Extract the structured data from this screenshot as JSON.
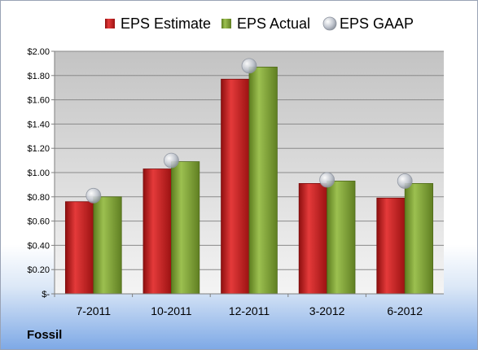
{
  "company": "Fossil",
  "chart_data": {
    "type": "bar",
    "categories": [
      "7-2011",
      "10-2011",
      "12-2011",
      "3-2012",
      "6-2012"
    ],
    "series": [
      {
        "name": "EPS Estimate",
        "kind": "bar",
        "color": "#cc1f1f",
        "values": [
          0.76,
          1.03,
          1.77,
          0.91,
          0.79
        ]
      },
      {
        "name": "EPS Actual",
        "kind": "bar",
        "color": "#7fa234",
        "values": [
          0.8,
          1.09,
          1.87,
          0.93,
          0.91
        ]
      },
      {
        "name": "EPS GAAP",
        "kind": "marker",
        "color": "#b8bec8",
        "values": [
          0.81,
          1.1,
          1.88,
          0.94,
          0.93
        ]
      }
    ],
    "yticks": [
      "$-",
      "$0.20",
      "$0.40",
      "$0.60",
      "$0.80",
      "$1.00",
      "$1.20",
      "$1.40",
      "$1.60",
      "$1.80",
      "$2.00"
    ],
    "ylim": [
      0,
      2.0
    ],
    "grid": true,
    "legend": "top"
  }
}
